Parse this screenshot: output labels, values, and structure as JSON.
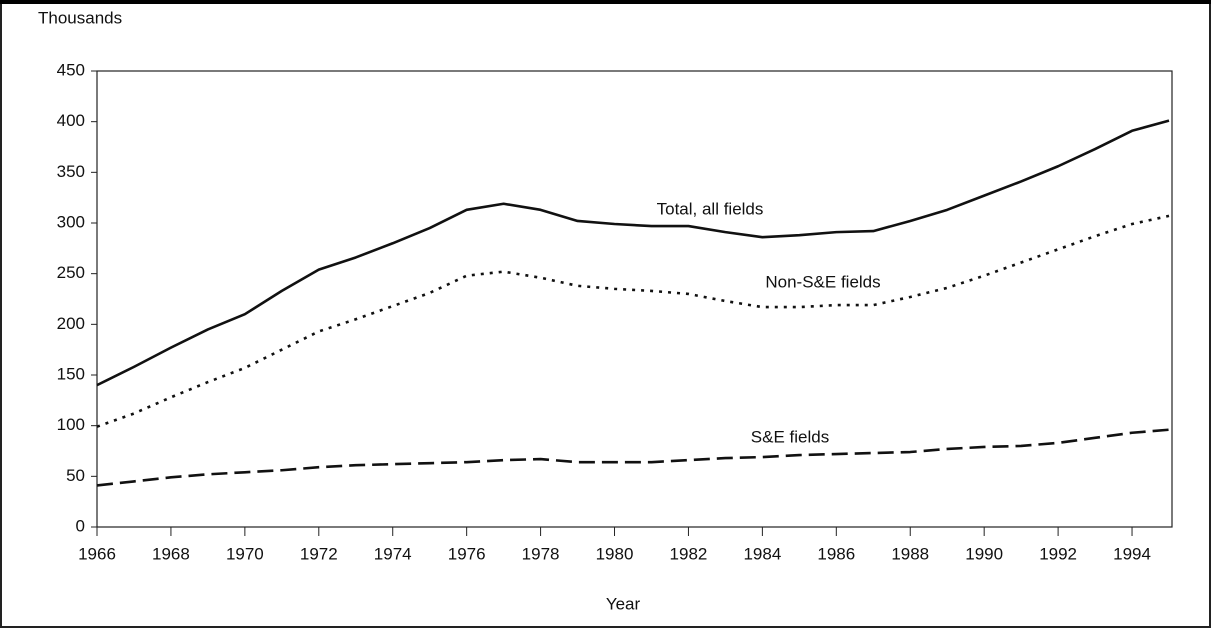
{
  "chart_data": {
    "type": "line",
    "y_axis_label": "Thousands",
    "x_axis_label": "Year",
    "annotations": [
      "Total, all fields",
      "Non-S&E fields",
      "S&E fields"
    ],
    "x": [
      1966,
      1967,
      1968,
      1969,
      1970,
      1971,
      1972,
      1973,
      1974,
      1975,
      1976,
      1977,
      1978,
      1979,
      1980,
      1981,
      1982,
      1983,
      1984,
      1985,
      1986,
      1987,
      1988,
      1989,
      1990,
      1991,
      1992,
      1993,
      1994,
      1995
    ],
    "series": [
      {
        "name": "Total, all fields",
        "color": "#111111",
        "style": "solid",
        "values": [
          140,
          158,
          177,
          195,
          210,
          233,
          254,
          266,
          280,
          295,
          313,
          319,
          313,
          302,
          299,
          297,
          297,
          291,
          286,
          288,
          291,
          292,
          302,
          313,
          327,
          341,
          356,
          373,
          391,
          401
        ]
      },
      {
        "name": "Non-S&E fields",
        "color": "#111111",
        "style": "dotted",
        "values": [
          99,
          112,
          128,
          143,
          157,
          175,
          193,
          205,
          218,
          231,
          248,
          252,
          246,
          238,
          235,
          233,
          230,
          223,
          217,
          217,
          219,
          219,
          227,
          236,
          248,
          261,
          274,
          287,
          299,
          307
        ]
      },
      {
        "name": "S&E fields",
        "color": "#111111",
        "style": "dashed",
        "values": [
          41,
          45,
          49,
          52,
          54,
          56,
          59,
          61,
          62,
          63,
          64,
          66,
          67,
          64,
          64,
          64,
          66,
          68,
          69,
          71,
          72,
          73,
          74,
          77,
          79,
          80,
          83,
          88,
          93,
          96
        ]
      }
    ],
    "xlim": [
      1966,
      1995
    ],
    "xticks": [
      1966,
      1968,
      1970,
      1972,
      1974,
      1976,
      1978,
      1980,
      1982,
      1984,
      1986,
      1988,
      1990,
      1992,
      1994
    ],
    "ylim": [
      0,
      450
    ],
    "yticks": [
      0,
      50,
      100,
      150,
      200,
      250,
      300,
      350,
      400,
      450
    ],
    "grid": false
  }
}
